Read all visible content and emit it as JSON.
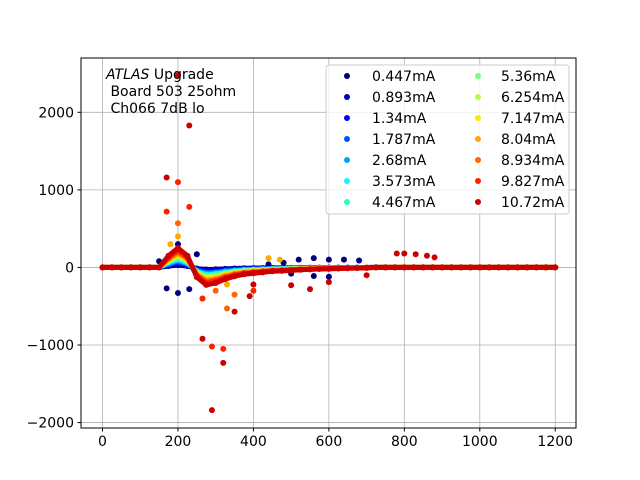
{
  "chart_data": {
    "type": "scatter",
    "xlim": [
      -57,
      1255
    ],
    "ylim": [
      -2070,
      2700
    ],
    "grid": true,
    "legend_placement": "top-right",
    "legend_columns": 2,
    "annotation": {
      "italic": "ATLAS",
      "line1": " Upgrade",
      "line2": " Board 503 25ohm",
      "line3": " Ch066 7dB lo"
    },
    "xticks": [
      0,
      200,
      400,
      600,
      800,
      1000,
      1200
    ],
    "yticks": [
      -2000,
      -1000,
      0,
      1000,
      2000
    ],
    "x": [
      0,
      25,
      50,
      75,
      100,
      125,
      150,
      175,
      200,
      225,
      250,
      275,
      300,
      325,
      350,
      375,
      400,
      425,
      450,
      475,
      500,
      525,
      550,
      575,
      600,
      625,
      650,
      675,
      700,
      725,
      750,
      775,
      800,
      825,
      850,
      875,
      900,
      925,
      950,
      975,
      1000,
      1025,
      1050,
      1075,
      1100,
      1125,
      1150,
      1175,
      1200
    ],
    "series": [
      {
        "name": "0.447mA",
        "color": "#00007f",
        "y": [
          0,
          0,
          0,
          0,
          0,
          0,
          0,
          18,
          30,
          18,
          -15,
          -27,
          -24,
          -18,
          -14,
          -11,
          -9,
          -8,
          -6,
          -5,
          -5,
          -4,
          -3,
          -2,
          -2,
          -2,
          -1,
          -1,
          -1,
          0,
          0,
          0,
          0,
          0,
          0,
          0,
          0,
          0,
          0,
          0,
          0,
          0,
          0,
          0,
          0,
          0,
          0,
          0,
          0
        ],
        "extra": [
          [
            150,
            80
          ],
          [
            170,
            -270
          ],
          [
            200,
            -330
          ],
          [
            230,
            -280
          ],
          [
            170,
            50
          ],
          [
            200,
            300
          ],
          [
            250,
            170
          ],
          [
            440,
            40
          ],
          [
            480,
            60
          ],
          [
            520,
            100
          ],
          [
            560,
            120
          ],
          [
            600,
            100
          ],
          [
            640,
            100
          ],
          [
            680,
            90
          ],
          [
            500,
            -80
          ],
          [
            560,
            -110
          ],
          [
            600,
            -120
          ]
        ]
      },
      {
        "name": "0.893mA",
        "color": "#0000c8",
        "y": [
          0,
          0,
          0,
          0,
          0,
          0,
          0,
          27,
          45,
          27,
          -23,
          -41,
          -36,
          -27,
          -20,
          -16,
          -14,
          -11,
          -9,
          -8,
          -7,
          -5,
          -5,
          -4,
          -3,
          -2,
          -2,
          -1,
          -1,
          0,
          0,
          0,
          0,
          0,
          0,
          0,
          0,
          0,
          0,
          0,
          0,
          0,
          0,
          0,
          0,
          0,
          0,
          0,
          0
        ]
      },
      {
        "name": "1.34mA",
        "color": "#0000ff",
        "y": [
          0,
          0,
          0,
          0,
          0,
          0,
          0,
          36,
          60,
          36,
          -30,
          -54,
          -48,
          -36,
          -27,
          -21,
          -18,
          -15,
          -12,
          -11,
          -9,
          -7,
          -6,
          -5,
          -4,
          -3,
          -2,
          -2,
          -1,
          0,
          0,
          0,
          0,
          0,
          0,
          0,
          0,
          0,
          0,
          0,
          0,
          0,
          0,
          0,
          0,
          0,
          0,
          0,
          0
        ]
      },
      {
        "name": "1.787mA",
        "color": "#0050ff",
        "y": [
          0,
          0,
          0,
          0,
          0,
          0,
          0,
          45,
          75,
          45,
          -38,
          -68,
          -60,
          -45,
          -34,
          -26,
          -23,
          -19,
          -15,
          -14,
          -11,
          -9,
          -8,
          -6,
          -5,
          -4,
          -3,
          -2,
          -2,
          0,
          0,
          0,
          0,
          0,
          0,
          0,
          0,
          0,
          0,
          0,
          0,
          0,
          0,
          0,
          0,
          0,
          0,
          0,
          0
        ]
      },
      {
        "name": "2.68mA",
        "color": "#00a0ff",
        "y": [
          0,
          0,
          0,
          0,
          0,
          0,
          0,
          54,
          90,
          54,
          -45,
          -81,
          -72,
          -54,
          -41,
          -32,
          -27,
          -23,
          -18,
          -16,
          -14,
          -11,
          -9,
          -7,
          -6,
          -5,
          -4,
          -3,
          -2,
          0,
          0,
          0,
          0,
          0,
          0,
          0,
          0,
          0,
          0,
          0,
          0,
          0,
          0,
          0,
          0,
          0,
          0,
          0,
          0
        ]
      },
      {
        "name": "3.573mA",
        "color": "#16f0ff",
        "y": [
          0,
          0,
          0,
          0,
          0,
          0,
          0,
          63,
          105,
          63,
          -53,
          -95,
          -84,
          -63,
          -47,
          -37,
          -32,
          -26,
          -21,
          -19,
          -16,
          -13,
          -11,
          -8,
          -7,
          -5,
          -4,
          -3,
          -2,
          0,
          0,
          0,
          0,
          0,
          0,
          0,
          0,
          0,
          0,
          0,
          0,
          0,
          0,
          0,
          0,
          0,
          0,
          0,
          0
        ]
      },
      {
        "name": "4.467mA",
        "color": "#2affc8",
        "y": [
          0,
          0,
          0,
          0,
          0,
          0,
          0,
          72,
          120,
          72,
          -60,
          -108,
          -96,
          -72,
          -54,
          -42,
          -36,
          -30,
          -24,
          -22,
          -18,
          -14,
          -12,
          -10,
          -8,
          -6,
          -5,
          -4,
          -2,
          0,
          0,
          0,
          0,
          0,
          0,
          0,
          0,
          0,
          0,
          0,
          0,
          0,
          0,
          0,
          0,
          0,
          0,
          0,
          0
        ]
      },
      {
        "name": "5.36mA",
        "color": "#7aff7d",
        "y": [
          0,
          0,
          0,
          0,
          0,
          0,
          0,
          81,
          135,
          81,
          -68,
          -122,
          -108,
          -81,
          -61,
          -47,
          -41,
          -34,
          -27,
          -24,
          -20,
          -16,
          -14,
          -11,
          -9,
          -7,
          -5,
          -4,
          -3,
          0,
          0,
          0,
          0,
          0,
          0,
          0,
          0,
          0,
          0,
          0,
          0,
          0,
          0,
          0,
          0,
          0,
          0,
          0,
          0
        ]
      },
      {
        "name": "6.254mA",
        "color": "#b4ff43",
        "y": [
          0,
          0,
          0,
          0,
          0,
          0,
          0,
          90,
          150,
          90,
          -75,
          -135,
          -120,
          -90,
          -68,
          -53,
          -45,
          -38,
          -30,
          -27,
          -23,
          -18,
          -15,
          -12,
          -11,
          -8,
          -6,
          -5,
          -3,
          0,
          0,
          0,
          0,
          0,
          0,
          0,
          0,
          0,
          0,
          0,
          0,
          0,
          0,
          0,
          0,
          0,
          0,
          0,
          0
        ]
      },
      {
        "name": "7.147mA",
        "color": "#ffea00",
        "y": [
          0,
          0,
          0,
          0,
          0,
          0,
          0,
          99,
          165,
          99,
          -83,
          -149,
          -132,
          -99,
          -74,
          -58,
          -50,
          -41,
          -33,
          -30,
          -25,
          -20,
          -17,
          -13,
          -12,
          -8,
          -7,
          -5,
          -3,
          0,
          0,
          0,
          0,
          0,
          0,
          0,
          0,
          0,
          0,
          0,
          0,
          0,
          0,
          0,
          0,
          0,
          0,
          0,
          0
        ]
      },
      {
        "name": "8.04mA",
        "color": "#ffa800",
        "y": [
          0,
          0,
          0,
          0,
          0,
          0,
          0,
          108,
          180,
          108,
          -90,
          -162,
          -144,
          -108,
          -81,
          -63,
          -54,
          -45,
          -36,
          -32,
          -27,
          -22,
          -18,
          -14,
          -13,
          -9,
          -7,
          -5,
          -4,
          0,
          0,
          0,
          0,
          0,
          0,
          0,
          0,
          0,
          0,
          0,
          0,
          0,
          0,
          0,
          0,
          0,
          0,
          0,
          0
        ],
        "extra": [
          [
            180,
            300
          ],
          [
            200,
            400
          ],
          [
            440,
            120
          ],
          [
            470,
            100
          ],
          [
            330,
            -220
          ]
        ]
      },
      {
        "name": "8.934mA",
        "color": "#ff6400",
        "y": [
          0,
          0,
          0,
          0,
          0,
          0,
          0,
          120,
          200,
          120,
          -100,
          -180,
          -160,
          -120,
          -90,
          -70,
          -60,
          -50,
          -40,
          -36,
          -30,
          -24,
          -20,
          -16,
          -14,
          -10,
          -8,
          -6,
          -4,
          0,
          0,
          0,
          0,
          0,
          0,
          0,
          0,
          0,
          0,
          0,
          0,
          0,
          0,
          0,
          0,
          0,
          0,
          0,
          0
        ],
        "extra": [
          [
            200,
            570
          ],
          [
            265,
            -400
          ],
          [
            300,
            -300
          ],
          [
            330,
            -530
          ],
          [
            350,
            -350
          ]
        ]
      },
      {
        "name": "9.827mA",
        "color": "#ff2000",
        "y": [
          0,
          0,
          0,
          0,
          0,
          0,
          0,
          132,
          220,
          132,
          -110,
          -198,
          -176,
          -132,
          -99,
          -77,
          -66,
          -55,
          -44,
          -40,
          -33,
          -26,
          -22,
          -18,
          -15,
          -11,
          -9,
          -7,
          -4,
          0,
          0,
          0,
          0,
          0,
          0,
          0,
          0,
          0,
          0,
          0,
          0,
          0,
          0,
          0,
          0,
          0,
          0,
          0,
          0
        ],
        "extra": [
          [
            200,
            1100
          ],
          [
            230,
            780
          ],
          [
            170,
            720
          ],
          [
            290,
            -1020
          ],
          [
            320,
            -1050
          ],
          [
            265,
            -400
          ],
          [
            400,
            -300
          ]
        ]
      },
      {
        "name": "10.72mA",
        "color": "#cc0000",
        "y": [
          0,
          0,
          0,
          0,
          0,
          0,
          0,
          150,
          250,
          150,
          -125,
          -225,
          -200,
          -150,
          -113,
          -88,
          -75,
          -63,
          -50,
          -45,
          -38,
          -30,
          -25,
          -20,
          -18,
          -13,
          -10,
          -8,
          -5,
          0,
          0,
          0,
          0,
          0,
          0,
          0,
          0,
          0,
          0,
          0,
          0,
          0,
          0,
          0,
          0,
          0,
          0,
          0,
          0
        ],
        "extra": [
          [
            200,
            2480
          ],
          [
            230,
            1830
          ],
          [
            170,
            1160
          ],
          [
            265,
            -920
          ],
          [
            320,
            -1230
          ],
          [
            290,
            -1840
          ],
          [
            350,
            -570
          ],
          [
            390,
            -370
          ],
          [
            780,
            180
          ],
          [
            800,
            180
          ],
          [
            830,
            170
          ],
          [
            860,
            150
          ],
          [
            880,
            130
          ],
          [
            400,
            -220
          ],
          [
            500,
            -230
          ],
          [
            550,
            -280
          ],
          [
            600,
            -190
          ],
          [
            700,
            -100
          ]
        ]
      }
    ]
  }
}
